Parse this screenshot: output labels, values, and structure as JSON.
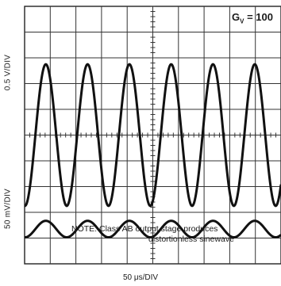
{
  "chart_data": {
    "type": "line",
    "title": "",
    "annotation": "G_V = 100",
    "annotation_base": "G",
    "annotation_sub": "V",
    "annotation_rest": " = 100",
    "note_line1": "NOTE: Class AB output stage produces",
    "note_line2": "distortionless sinewave",
    "xlabel": "50 μs/DIV",
    "grid": true,
    "grid_divisions": {
      "x": 10,
      "y": 10
    },
    "xlim_div": [
      0,
      10
    ],
    "series": [
      {
        "name": "",
        "trace": "upper",
        "ylabel": "0.5 V/DIV",
        "shape": "sine",
        "amplitude_div": 2.75,
        "center_div": 5.0,
        "period_div": 1.63,
        "phase_div": 0.42
      },
      {
        "name": "",
        "trace": "lower",
        "ylabel": "50 mV/DIV",
        "shape": "sine",
        "amplitude_div": 0.32,
        "center_div": 1.35,
        "period_div": 1.63,
        "phase_div": 0.42
      }
    ]
  }
}
